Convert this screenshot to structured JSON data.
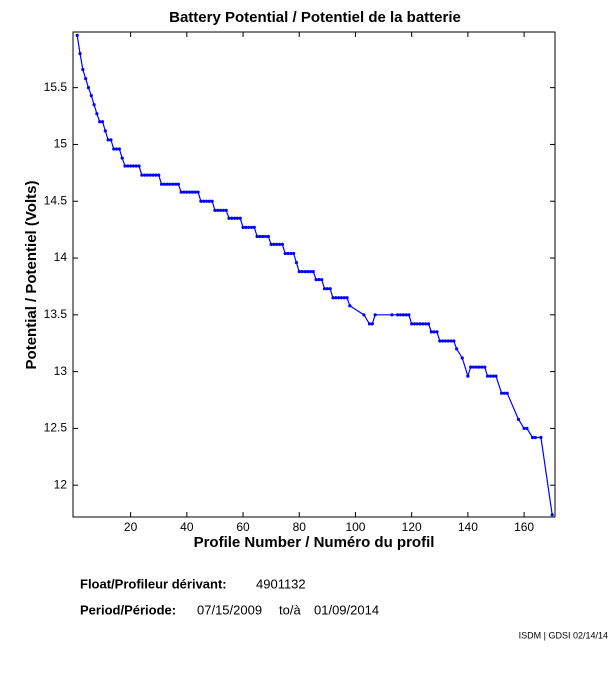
{
  "chart_data": {
    "type": "line",
    "title": "Battery Potential / Potentiel de la batterie",
    "xlabel": "Profile Number / Numéro du profil",
    "ylabel": "Potential / Potentiel (Volts)",
    "x": [
      1,
      2,
      3,
      4,
      5,
      6,
      7,
      8,
      9,
      10,
      11,
      12,
      13,
      14,
      15,
      16,
      17,
      18,
      19,
      20,
      21,
      22,
      23,
      24,
      25,
      26,
      27,
      28,
      29,
      30,
      31,
      32,
      33,
      34,
      35,
      36,
      37,
      38,
      39,
      40,
      41,
      42,
      43,
      44,
      45,
      46,
      47,
      48,
      49,
      50,
      51,
      52,
      53,
      54,
      55,
      56,
      57,
      58,
      59,
      60,
      61,
      62,
      63,
      64,
      65,
      66,
      67,
      68,
      69,
      70,
      71,
      72,
      73,
      74,
      75,
      76,
      77,
      78,
      79,
      80,
      81,
      82,
      83,
      84,
      85,
      86,
      87,
      88,
      89,
      90,
      91,
      92,
      93,
      94,
      95,
      96,
      97,
      98,
      103,
      105,
      106,
      107,
      113,
      115,
      116,
      117,
      118,
      119,
      120,
      121,
      122,
      123,
      124,
      125,
      126,
      127,
      128,
      129,
      130,
      131,
      132,
      133,
      134,
      135,
      136,
      138,
      140,
      141,
      142,
      143,
      144,
      145,
      146,
      147,
      148,
      149,
      150,
      152,
      153,
      154,
      158,
      160,
      161,
      163,
      164,
      166,
      170
    ],
    "series": [
      {
        "name": "Battery Potential",
        "color": "#0000ff",
        "values": [
          15.96,
          15.8,
          15.66,
          15.58,
          15.5,
          15.43,
          15.35,
          15.27,
          15.2,
          15.2,
          15.12,
          15.04,
          15.04,
          14.96,
          14.96,
          14.96,
          14.88,
          14.81,
          14.81,
          14.81,
          14.81,
          14.81,
          14.81,
          14.73,
          14.73,
          14.73,
          14.73,
          14.73,
          14.73,
          14.73,
          14.65,
          14.65,
          14.65,
          14.65,
          14.65,
          14.65,
          14.65,
          14.58,
          14.58,
          14.58,
          14.58,
          14.58,
          14.58,
          14.58,
          14.5,
          14.5,
          14.5,
          14.5,
          14.5,
          14.42,
          14.42,
          14.42,
          14.42,
          14.42,
          14.35,
          14.35,
          14.35,
          14.35,
          14.35,
          14.27,
          14.27,
          14.27,
          14.27,
          14.27,
          14.19,
          14.19,
          14.19,
          14.19,
          14.19,
          14.12,
          14.12,
          14.12,
          14.12,
          14.12,
          14.04,
          14.04,
          14.04,
          14.04,
          13.96,
          13.88,
          13.88,
          13.88,
          13.88,
          13.88,
          13.88,
          13.81,
          13.81,
          13.81,
          13.73,
          13.73,
          13.73,
          13.65,
          13.65,
          13.65,
          13.65,
          13.65,
          13.65,
          13.58,
          13.5,
          13.42,
          13.42,
          13.5,
          13.5,
          13.5,
          13.5,
          13.5,
          13.5,
          13.5,
          13.42,
          13.42,
          13.42,
          13.42,
          13.42,
          13.42,
          13.42,
          13.35,
          13.35,
          13.35,
          13.27,
          13.27,
          13.27,
          13.27,
          13.27,
          13.27,
          13.2,
          13.12,
          12.96,
          13.04,
          13.04,
          13.04,
          13.04,
          13.04,
          13.04,
          12.96,
          12.96,
          12.96,
          12.96,
          12.81,
          12.81,
          12.81,
          12.58,
          12.5,
          12.5,
          12.42,
          12.42,
          12.42,
          11.74
        ]
      }
    ],
    "xlim": [
      -0.5,
      171
    ],
    "xticks": [
      20,
      40,
      60,
      80,
      100,
      120,
      140,
      160
    ],
    "ylim": [
      11.72,
      15.99
    ],
    "yticks": [
      12,
      12.5,
      13,
      13.5,
      14,
      14.5,
      15,
      15.5
    ],
    "grid": false
  },
  "info": {
    "float_label": "Float/Profileur dérivant:",
    "float_id": "4901132",
    "period_label": "Period/Période:",
    "start": "07/15/2009",
    "to": "to/à",
    "end": "01/09/2014",
    "footer": "ISDM | GDSI 02/14/14"
  }
}
